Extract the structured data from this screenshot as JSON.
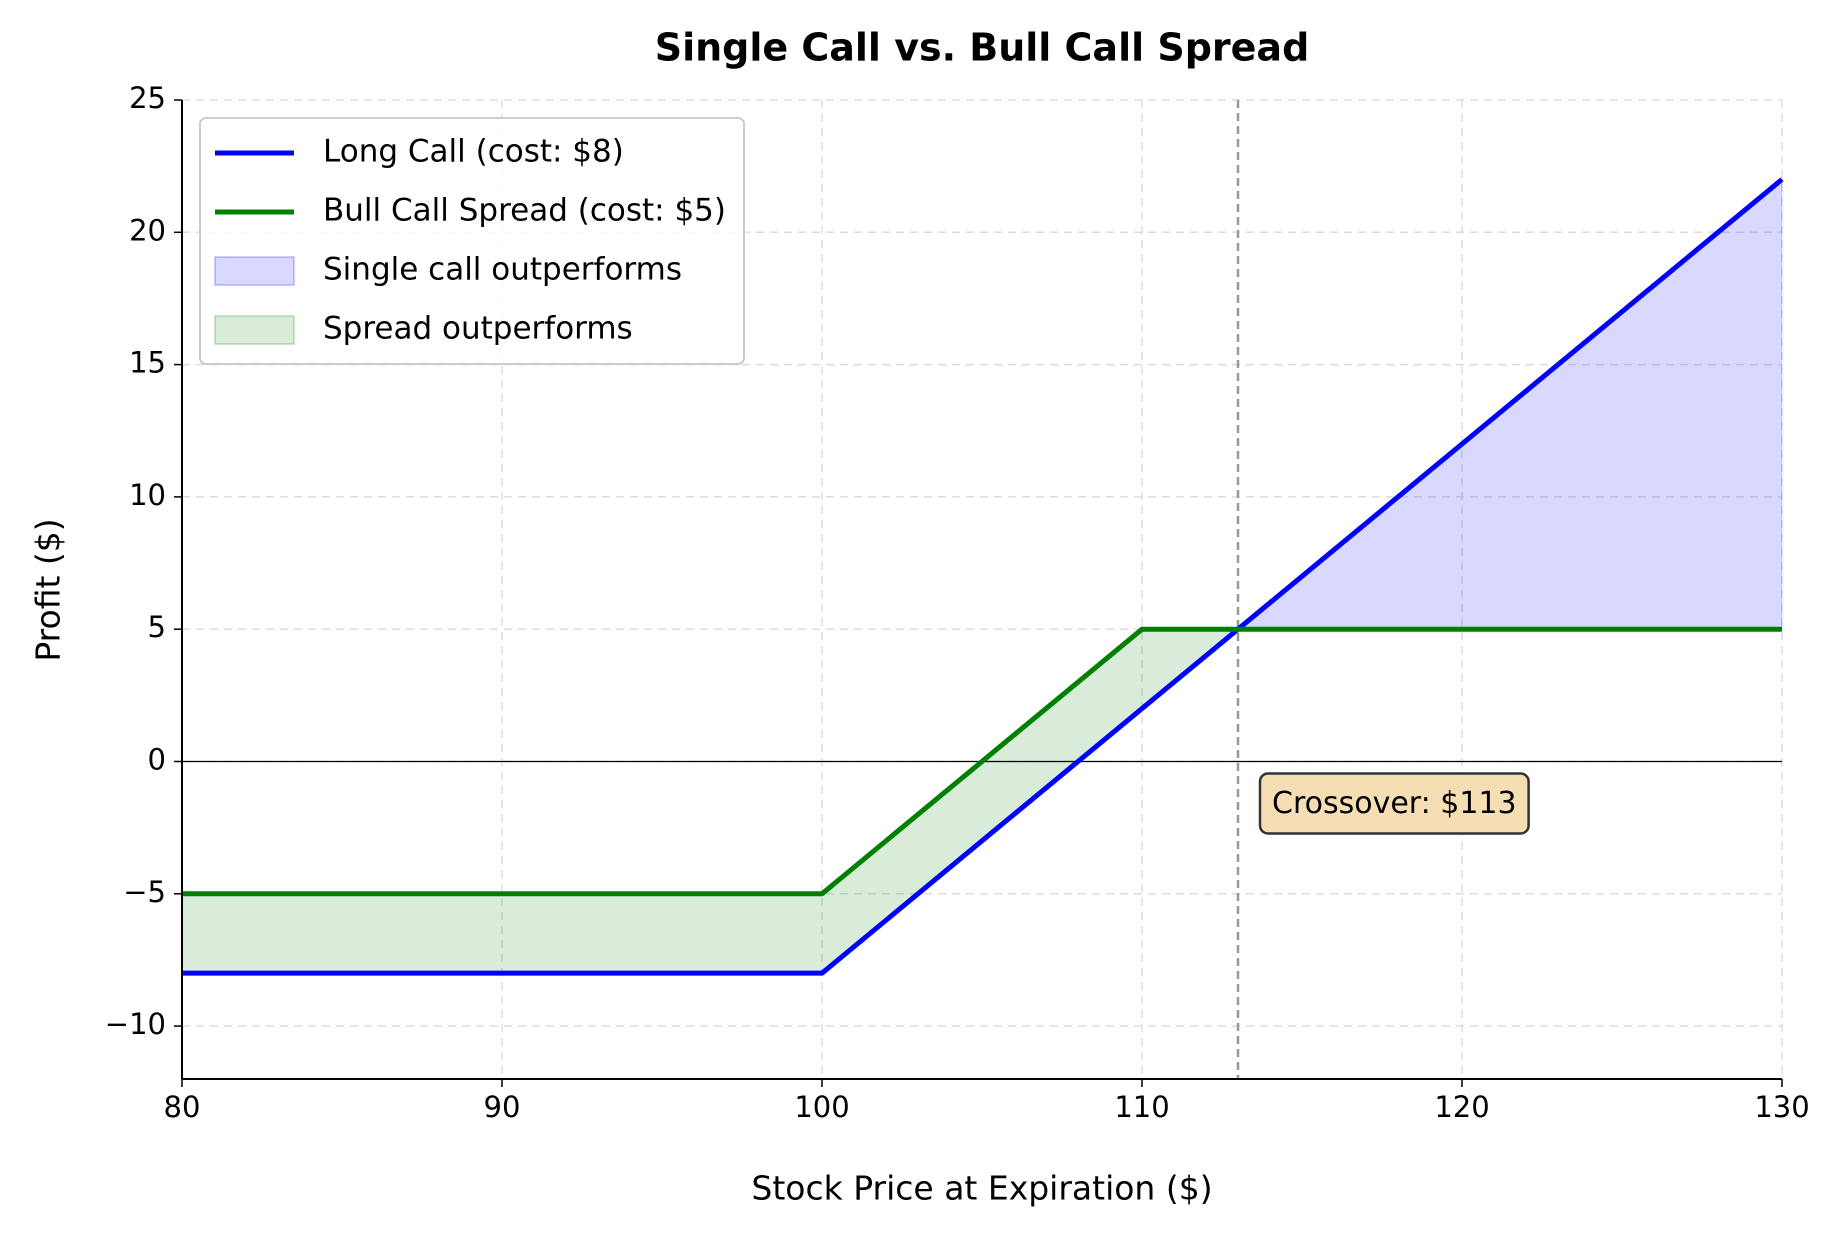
{
  "chart_data": {
    "type": "line",
    "title": "Single Call vs. Bull Call Spread",
    "x_label": "Stock Price at Expiration ($)",
    "y_label": "Profit ($)",
    "x": [
      80,
      100,
      110,
      113,
      130
    ],
    "series": [
      {
        "name": "Long Call (cost: $8)",
        "color": "#0000ff",
        "values": [
          -8,
          -8,
          2,
          5,
          22
        ]
      },
      {
        "name": "Bull Call Spread (cost: $5)",
        "color": "#008000",
        "values": [
          -5,
          -5,
          5,
          5,
          5
        ]
      }
    ],
    "fills": [
      {
        "name": "Single call outperforms",
        "color": "#0000ff"
      },
      {
        "name": "Spread outperforms",
        "color": "#008000"
      }
    ],
    "crossover_x": 113,
    "annotation": "Crossover: $113",
    "xlim": [
      80,
      130
    ],
    "ylim": [
      -12,
      25
    ],
    "xticks": [
      80,
      90,
      100,
      110,
      120,
      130
    ],
    "yticks": [
      {
        "value": -10,
        "label": "−10"
      },
      {
        "value": -5,
        "label": "−5"
      },
      0,
      5,
      10,
      15,
      20,
      25
    ],
    "grid": true,
    "legend": "upper left"
  }
}
